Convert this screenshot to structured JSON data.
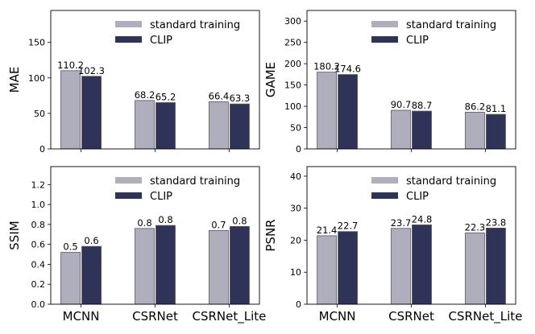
{
  "colors": {
    "standard": "#aeaebd",
    "clip": "#2e3357",
    "axis": "#000000",
    "bar_edge": "#555566"
  },
  "legend_entries": [
    "standard training",
    "CLIP"
  ],
  "chart_data": [
    {
      "type": "bar",
      "ylabel": "MAE",
      "categories": [
        "MCNN",
        "CSRNet",
        "CSRNet_Lite"
      ],
      "show_category_labels": false,
      "ylim": [
        0,
        195
      ],
      "yticks": [
        0,
        50,
        100,
        150
      ],
      "series": [
        {
          "name": "standard training",
          "values": [
            110.2,
            68.2,
            66.4
          ],
          "labels": [
            "110.2",
            "68.2",
            "66.4"
          ]
        },
        {
          "name": "CLIP",
          "values": [
            102.3,
            65.2,
            63.3
          ],
          "labels": [
            "102.3",
            "65.2",
            "63.3"
          ]
        }
      ],
      "legend": "top-right",
      "grid": false
    },
    {
      "type": "bar",
      "ylabel": "GAME",
      "categories": [
        "MCNN",
        "CSRNet",
        "CSRNet_Lite"
      ],
      "show_category_labels": false,
      "ylim": [
        0,
        325
      ],
      "yticks": [
        0,
        50,
        100,
        150,
        200,
        250,
        300
      ],
      "series": [
        {
          "name": "standard training",
          "values": [
            180.2,
            90.7,
            86.2
          ],
          "labels": [
            "180.2",
            "90.7",
            "86.2"
          ]
        },
        {
          "name": "CLIP",
          "values": [
            174.6,
            88.7,
            81.1
          ],
          "labels": [
            "174.6",
            "88.7",
            "81.1"
          ]
        }
      ],
      "legend": "top-right",
      "grid": false
    },
    {
      "type": "bar",
      "ylabel": "SSIM",
      "categories": [
        "MCNN",
        "CSRNet",
        "CSRNet_Lite"
      ],
      "show_category_labels": true,
      "ylim": [
        0,
        1.38
      ],
      "yticks": [
        0.0,
        0.2,
        0.4,
        0.6,
        0.8,
        1.0,
        1.2
      ],
      "ytick_labels": [
        "0.0",
        "0.2",
        "0.4",
        "0.6",
        "0.8",
        "1.0",
        "1.2"
      ],
      "series": [
        {
          "name": "standard training",
          "values": [
            0.52,
            0.76,
            0.74
          ],
          "labels": [
            "0.5",
            "0.8",
            "0.7"
          ]
        },
        {
          "name": "CLIP",
          "values": [
            0.58,
            0.79,
            0.78
          ],
          "labels": [
            "0.6",
            "0.8",
            "0.8"
          ]
        }
      ],
      "legend": "top-right",
      "grid": false
    },
    {
      "type": "bar",
      "ylabel": "PSNR",
      "categories": [
        "MCNN",
        "CSRNet",
        "CSRNet_Lite"
      ],
      "show_category_labels": true,
      "ylim": [
        0,
        43
      ],
      "yticks": [
        0,
        10,
        20,
        30,
        40
      ],
      "series": [
        {
          "name": "standard training",
          "values": [
            21.4,
            23.7,
            22.3
          ],
          "labels": [
            "21.4",
            "23.7",
            "22.3"
          ]
        },
        {
          "name": "CLIP",
          "values": [
            22.7,
            24.8,
            23.8
          ],
          "labels": [
            "22.7",
            "24.8",
            "23.8"
          ]
        }
      ],
      "legend": "top-right",
      "grid": false
    }
  ]
}
